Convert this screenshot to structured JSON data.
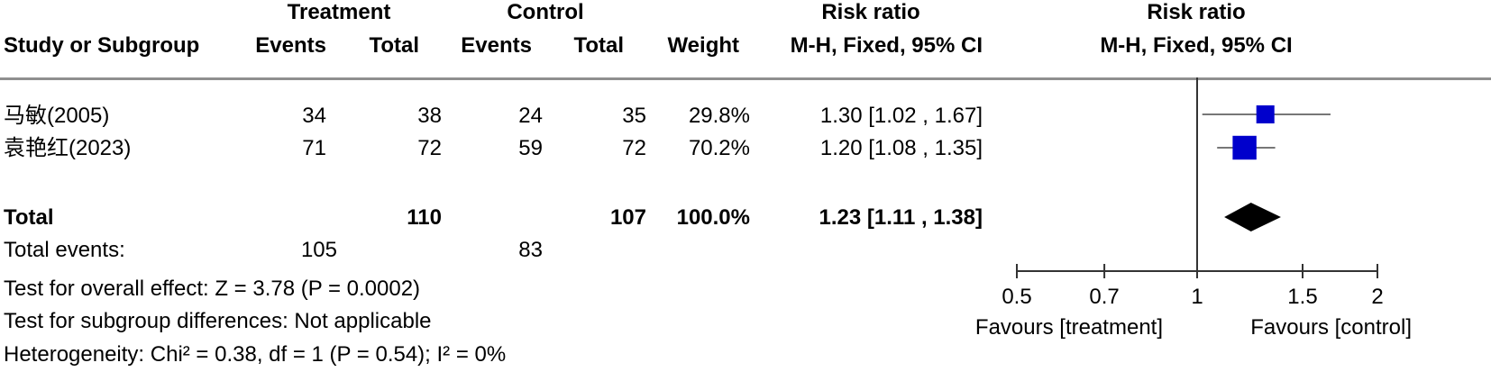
{
  "header": {
    "group1": "Treatment",
    "group2": "Control",
    "rr_group": "Risk ratio",
    "plot_group": "Risk ratio",
    "study_col": "Study or Subgroup",
    "events1": "Events",
    "total1": "Total",
    "events2": "Events",
    "total2": "Total",
    "weight": "Weight",
    "rr_method": "M-H, Fixed, 95% CI",
    "plot_method": "M-H, Fixed, 95% CI"
  },
  "studies": [
    {
      "name": "马敏(2005)",
      "events1": "34",
      "total1": "38",
      "events2": "24",
      "total2": "35",
      "weight": "29.8%",
      "ci_text": "1.30 [1.02 , 1.67]"
    },
    {
      "name": "袁艳红(2023)",
      "events1": "71",
      "total1": "72",
      "events2": "59",
      "total2": "72",
      "weight": "70.2%",
      "ci_text": "1.20 [1.08 , 1.35]"
    }
  ],
  "total": {
    "label": "Total",
    "total1": "110",
    "total2": "107",
    "weight": "100.0%",
    "ci_text": "1.23 [1.11 , 1.38]"
  },
  "total_events": {
    "label": "Total events:",
    "events1": "105",
    "events2": "83"
  },
  "footer": {
    "overall": "Test for overall effect: Z = 3.78 (P = 0.0002)",
    "subgroup": "Test for subgroup differences: Not applicable",
    "heterogeneity": "Heterogeneity: Chi² = 0.38, df = 1 (P = 0.54); I² = 0%"
  },
  "axis": {
    "left_label": "Favours [treatment]",
    "right_label": "Favours [control]"
  },
  "colors": {
    "study_marker": "#0000cc",
    "summary_marker": "#000000",
    "ci_line": "#777777",
    "axis": "#333333"
  },
  "chart_data": {
    "type": "forest",
    "scale": "log",
    "xlim": [
      0.5,
      2
    ],
    "null_value": 1,
    "ticks": [
      0.5,
      0.7,
      1,
      1.5,
      2
    ],
    "tick_labels": [
      "0.5",
      "0.7",
      "1",
      "1.5",
      "2"
    ],
    "studies": [
      {
        "name": "马敏(2005)",
        "rr": 1.3,
        "lower": 1.02,
        "upper": 1.67,
        "weight": 29.8
      },
      {
        "name": "袁艳红(2023)",
        "rr": 1.2,
        "lower": 1.08,
        "upper": 1.35,
        "weight": 70.2
      }
    ],
    "summary": {
      "rr": 1.23,
      "lower": 1.11,
      "upper": 1.38
    }
  }
}
